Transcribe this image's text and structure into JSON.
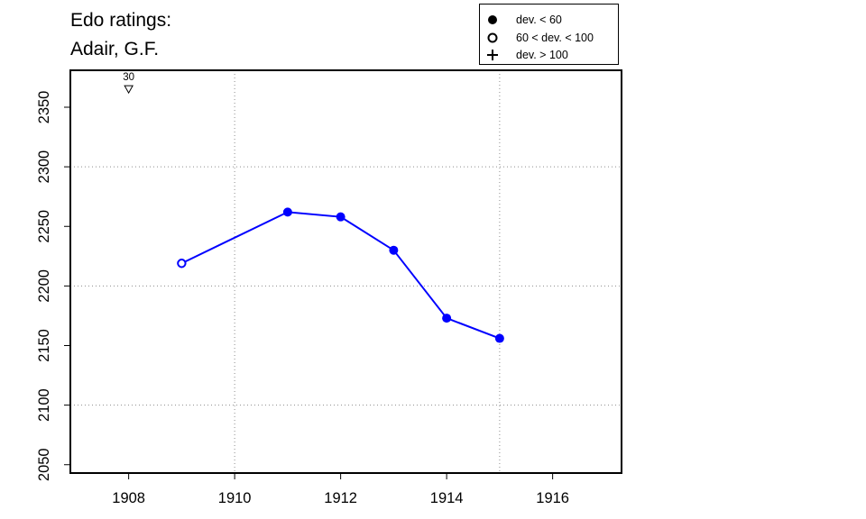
{
  "title_lines": [
    "Edo ratings:",
    "Adair, G.F."
  ],
  "legend": [
    {
      "symbol": "filled-circle",
      "label": "dev. < 60"
    },
    {
      "symbol": "open-circle",
      "label": "60 < dev. < 100"
    },
    {
      "symbol": "plus",
      "label": "dev. > 100"
    }
  ],
  "colors": {
    "series": "#0000ff",
    "axis": "#000000",
    "grid": "#8c8c8c"
  },
  "chart_data": {
    "type": "line",
    "title": "Edo ratings: Adair, G.F.",
    "xlim": [
      1906.9,
      1917.3
    ],
    "ylim": [
      2043,
      2381
    ],
    "xticks": [
      1908,
      1910,
      1912,
      1914,
      1916
    ],
    "yticks": [
      2050,
      2100,
      2150,
      2200,
      2250,
      2300,
      2350
    ],
    "x_gridlines": [
      1910,
      1915
    ],
    "y_gridlines": [
      2100,
      2200,
      2300
    ],
    "grid": true,
    "legend_position": "top-right",
    "series": [
      {
        "points": [
          {
            "x": 1909,
            "y": 2219,
            "marker": "open-circle"
          },
          {
            "x": 1911,
            "y": 2262,
            "marker": "filled-circle"
          },
          {
            "x": 1912,
            "y": 2258,
            "marker": "filled-circle"
          },
          {
            "x": 1913,
            "y": 2230,
            "marker": "filled-circle"
          },
          {
            "x": 1914,
            "y": 2173,
            "marker": "filled-circle"
          },
          {
            "x": 1915,
            "y": 2156,
            "marker": "filled-circle"
          }
        ]
      }
    ],
    "annotations": [
      {
        "x": 1908,
        "y": 2365,
        "marker": "open-triangle-down",
        "label": "30"
      }
    ]
  }
}
